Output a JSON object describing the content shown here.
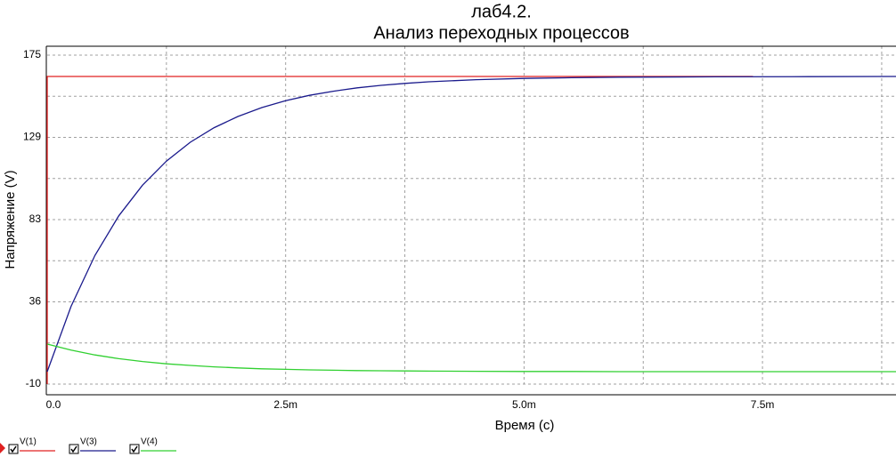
{
  "chart_data": {
    "type": "line",
    "title": "лаб4.2.",
    "subtitle": "Анализ переходных процессов",
    "x_label": "Время (с)",
    "y_label": "Напряжение (V)",
    "xlim": [
      0,
      0.0089
    ],
    "ylim": [
      -10,
      175
    ],
    "xticks": [
      {
        "value": 0,
        "label": "0.0"
      },
      {
        "value": 0.0025,
        "label": "2.5m"
      },
      {
        "value": 0.005,
        "label": "5.0m"
      },
      {
        "value": 0.0075,
        "label": "7.5m"
      }
    ],
    "yticks": [
      {
        "value": -10,
        "label": "-10"
      },
      {
        "value": 36.25,
        "label": "36"
      },
      {
        "value": 82.5,
        "label": "83"
      },
      {
        "value": 128.75,
        "label": "129"
      },
      175
    ],
    "xminorticks": [
      0.00125,
      0.00375,
      0.00625,
      0.00875
    ],
    "yminorticks": [
      13.125,
      59.375,
      105.625,
      151.875
    ],
    "grid": true,
    "series": [
      {
        "name": "V(1)",
        "color": "#e02020",
        "x": [
          0,
          0,
          0.0074
        ],
        "values": [
          -10,
          163,
          163
        ]
      },
      {
        "name": "V(3)",
        "color": "#1a1a8c",
        "x": [
          0,
          0.00025,
          0.0005,
          0.00075,
          0.001,
          0.00125,
          0.0015,
          0.00175,
          0.002,
          0.00225,
          0.0025,
          0.00275,
          0.003,
          0.00325,
          0.0035,
          0.00375,
          0.004,
          0.0045,
          0.005,
          0.0055,
          0.006,
          0.007,
          0.008,
          0.0089
        ],
        "values": [
          -3,
          33.7,
          62.3,
          84.6,
          101.9,
          115.4,
          126.0,
          134.2,
          140.5,
          145.5,
          149.4,
          152.4,
          154.7,
          156.6,
          158.0,
          159.1,
          160.0,
          161.2,
          161.9,
          162.3,
          162.6,
          162.8,
          162.9,
          163.0
        ]
      },
      {
        "name": "V(4)",
        "color": "#30d030",
        "x": [
          0,
          0.00025,
          0.0005,
          0.00075,
          0.001,
          0.00125,
          0.0015,
          0.00175,
          0.002,
          0.00225,
          0.0025,
          0.00275,
          0.003,
          0.00325,
          0.0035,
          0.00375,
          0.004,
          0.0045,
          0.005,
          0.0055,
          0.006,
          0.007,
          0.008,
          0.0089
        ],
        "values": [
          12.5,
          9.1,
          6.4,
          4.3,
          2.7,
          1.4,
          0.5,
          -0.3,
          -0.9,
          -1.4,
          -1.7,
          -2.0,
          -2.2,
          -2.4,
          -2.5,
          -2.6,
          -2.7,
          -2.8,
          -2.9,
          -2.9,
          -3.0,
          -3.0,
          -3.0,
          -3.0
        ]
      }
    ]
  }
}
